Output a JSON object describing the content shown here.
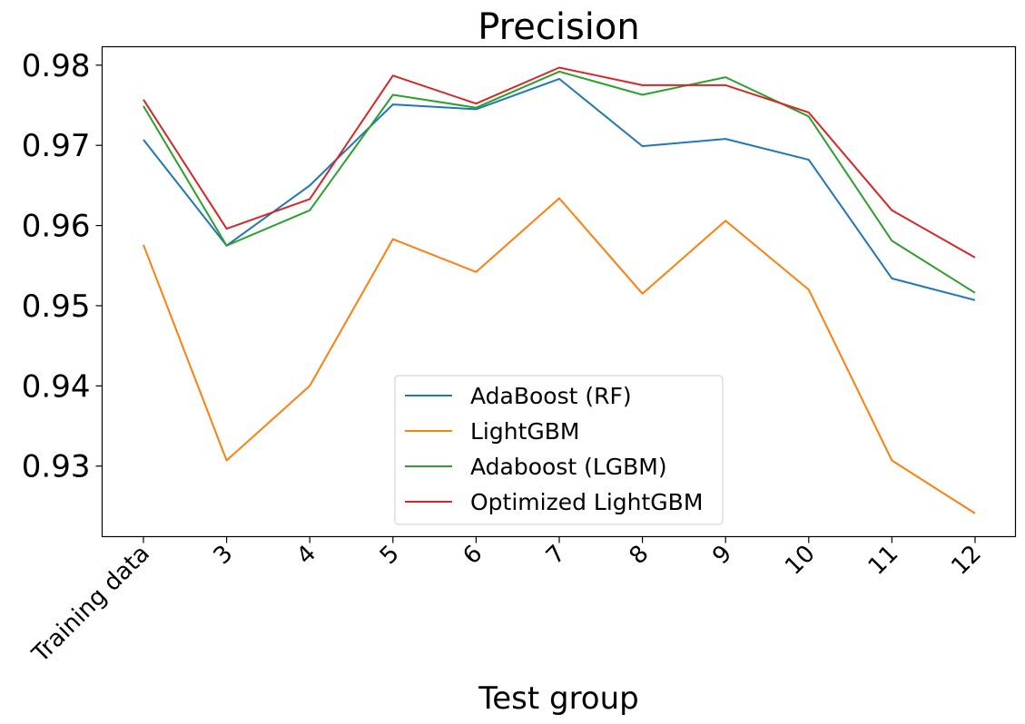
{
  "chart_data": {
    "type": "line",
    "title": "Precision",
    "xlabel": "Test group",
    "ylabel": "",
    "categories": [
      "Training data",
      "3",
      "4",
      "5",
      "6",
      "7",
      "8",
      "9",
      "10",
      "11",
      "12"
    ],
    "yticks": [
      "0.93",
      "0.94",
      "0.95",
      "0.96",
      "0.97",
      "0.98"
    ],
    "ylim": [
      0.9212,
      0.9823
    ],
    "grid": false,
    "legend_position": "lower-center",
    "series": [
      {
        "name": "AdaBoost (RF)",
        "color": "#1f77b4",
        "values": [
          0.9707,
          0.9575,
          0.965,
          0.9751,
          0.9745,
          0.9783,
          0.9699,
          0.9708,
          0.9682,
          0.9534,
          0.9507
        ]
      },
      {
        "name": "LightGBM",
        "color": "#ff7f0e",
        "values": [
          0.9576,
          0.9307,
          0.94,
          0.9583,
          0.9542,
          0.9634,
          0.9515,
          0.9606,
          0.952,
          0.9307,
          0.9241
        ]
      },
      {
        "name": "Adaboost (LGBM)",
        "color": "#2ca02c",
        "values": [
          0.9749,
          0.9575,
          0.9619,
          0.9763,
          0.9747,
          0.9792,
          0.9763,
          0.9785,
          0.9736,
          0.9581,
          0.9516
        ]
      },
      {
        "name": "Optimized LightGBM",
        "color": "#d62728",
        "values": [
          0.9757,
          0.9596,
          0.9633,
          0.9787,
          0.9752,
          0.9797,
          0.9775,
          0.9775,
          0.9741,
          0.9619,
          0.956
        ]
      }
    ]
  }
}
